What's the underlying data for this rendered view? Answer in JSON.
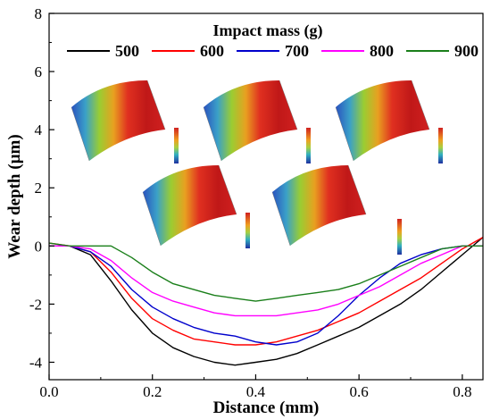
{
  "chart_data": {
    "type": "line",
    "title": "",
    "xlabel": "Distance (mm)",
    "ylabel": "Wear depth (µm)",
    "xlim": [
      0.0,
      0.84
    ],
    "ylim": [
      -4.6,
      8.0
    ],
    "x_ticks": [
      0.0,
      0.2,
      0.4,
      0.6,
      0.8
    ],
    "x_tick_labels": [
      "0.0",
      "0.2",
      "0.4",
      "0.6",
      "0.8"
    ],
    "y_ticks": [
      -4,
      -2,
      0,
      2,
      4,
      6,
      8
    ],
    "y_tick_labels": [
      "-4",
      "-2",
      "0",
      "2",
      "4",
      "6",
      "8"
    ],
    "grid": false,
    "legend": {
      "title": "Impact mass (g)",
      "placement": "top-center"
    },
    "series": [
      {
        "name": "500",
        "color": "#000000",
        "x": [
          0.0,
          0.04,
          0.08,
          0.12,
          0.16,
          0.2,
          0.24,
          0.28,
          0.32,
          0.36,
          0.4,
          0.44,
          0.48,
          0.52,
          0.56,
          0.6,
          0.64,
          0.68,
          0.72,
          0.76,
          0.8,
          0.84
        ],
        "y": [
          0.0,
          0.0,
          -0.3,
          -1.2,
          -2.2,
          -3.0,
          -3.5,
          -3.8,
          -4.0,
          -4.1,
          -4.0,
          -3.9,
          -3.7,
          -3.4,
          -3.1,
          -2.8,
          -2.4,
          -2.0,
          -1.5,
          -0.9,
          -0.3,
          0.3
        ]
      },
      {
        "name": "600",
        "color": "#ff0000",
        "x": [
          0.0,
          0.04,
          0.08,
          0.12,
          0.16,
          0.2,
          0.24,
          0.28,
          0.32,
          0.36,
          0.4,
          0.44,
          0.48,
          0.52,
          0.56,
          0.6,
          0.64,
          0.68,
          0.72,
          0.76,
          0.8,
          0.84
        ],
        "y": [
          0.1,
          0.0,
          -0.2,
          -0.9,
          -1.8,
          -2.5,
          -2.9,
          -3.2,
          -3.3,
          -3.4,
          -3.4,
          -3.3,
          -3.1,
          -2.9,
          -2.6,
          -2.3,
          -1.9,
          -1.5,
          -1.1,
          -0.6,
          -0.1,
          0.3
        ]
      },
      {
        "name": "700",
        "color": "#0000cc",
        "x": [
          0.0,
          0.04,
          0.08,
          0.12,
          0.16,
          0.2,
          0.24,
          0.28,
          0.32,
          0.36,
          0.4,
          0.44,
          0.48,
          0.52,
          0.56,
          0.6,
          0.64,
          0.68,
          0.72,
          0.76,
          0.8,
          0.84
        ],
        "y": [
          0.0,
          0.0,
          -0.2,
          -0.7,
          -1.5,
          -2.1,
          -2.5,
          -2.8,
          -3.0,
          -3.1,
          -3.3,
          -3.4,
          -3.3,
          -3.0,
          -2.4,
          -1.7,
          -1.1,
          -0.6,
          -0.3,
          -0.1,
          0.0,
          0.0
        ]
      },
      {
        "name": "800",
        "color": "#ff00ff",
        "x": [
          0.0,
          0.04,
          0.08,
          0.12,
          0.16,
          0.2,
          0.24,
          0.28,
          0.32,
          0.36,
          0.4,
          0.44,
          0.48,
          0.52,
          0.56,
          0.6,
          0.64,
          0.68,
          0.72,
          0.76,
          0.8,
          0.84
        ],
        "y": [
          0.0,
          0.0,
          -0.1,
          -0.5,
          -1.1,
          -1.6,
          -1.9,
          -2.1,
          -2.3,
          -2.4,
          -2.4,
          -2.4,
          -2.3,
          -2.2,
          -2.0,
          -1.7,
          -1.4,
          -1.0,
          -0.6,
          -0.3,
          0.0,
          0.0
        ]
      },
      {
        "name": "900",
        "color": "#1a7f1a",
        "x": [
          0.0,
          0.04,
          0.08,
          0.12,
          0.16,
          0.2,
          0.24,
          0.28,
          0.32,
          0.36,
          0.4,
          0.44,
          0.48,
          0.52,
          0.56,
          0.6,
          0.64,
          0.68,
          0.72,
          0.76,
          0.8,
          0.84
        ],
        "y": [
          0.1,
          0.0,
          0.0,
          0.0,
          -0.4,
          -0.9,
          -1.3,
          -1.5,
          -1.7,
          -1.8,
          -1.9,
          -1.8,
          -1.7,
          -1.6,
          -1.5,
          -1.3,
          -1.0,
          -0.7,
          -0.4,
          -0.1,
          0.0,
          0.0
        ]
      }
    ]
  }
}
